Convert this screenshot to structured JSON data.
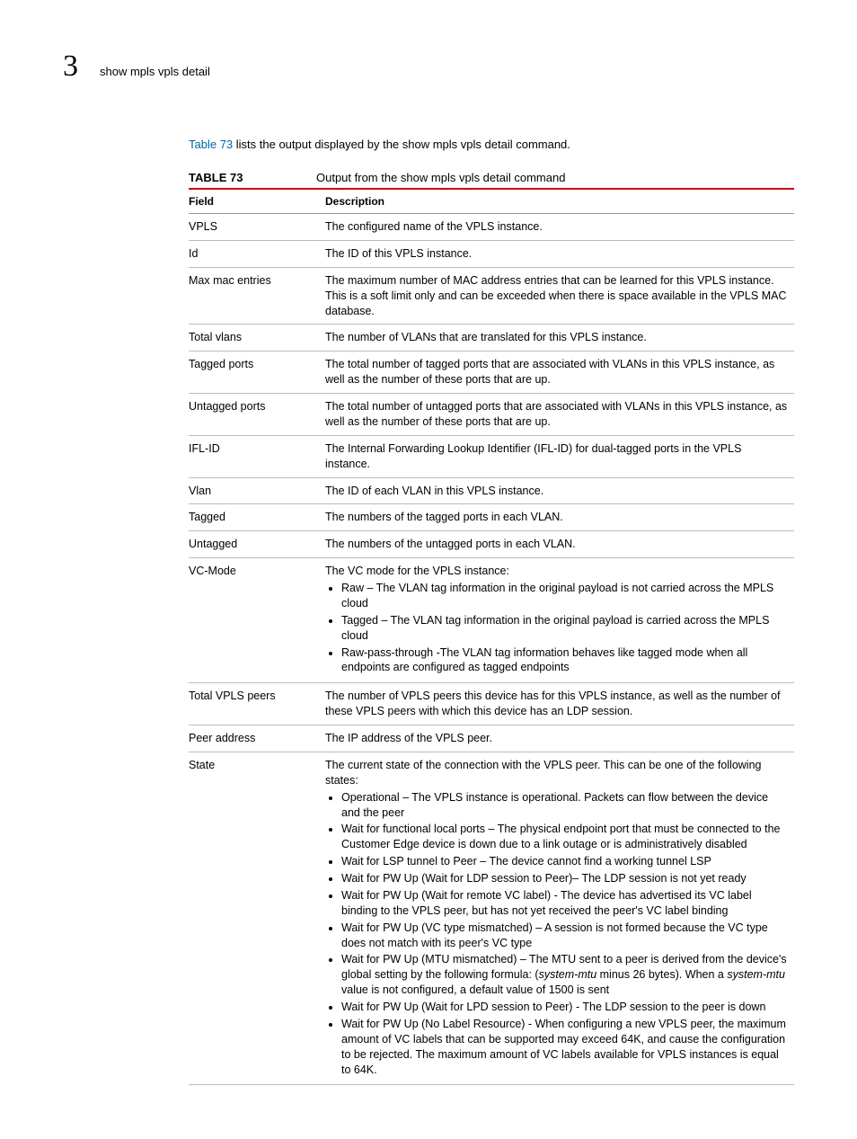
{
  "header": {
    "chapter_number": "3",
    "running_title": "show mpls vpls detail"
  },
  "intro": {
    "link_text": "Table 73",
    "rest_text": " lists the output displayed by the show mpls vpls detail command."
  },
  "table": {
    "number_label": "TABLE 73",
    "title": "Output from the show mpls vpls detail command",
    "columns": {
      "field": "Field",
      "description": "Description"
    },
    "rows": [
      {
        "field": "VPLS",
        "desc": "The configured name of the VPLS instance."
      },
      {
        "field": "Id",
        "desc": "The ID of this VPLS instance."
      },
      {
        "field": "Max mac entries",
        "desc": "The maximum number of MAC address entries that can be learned for this VPLS instance. This is a soft limit only and can be exceeded when there is space available in the VPLS MAC database."
      },
      {
        "field": "Total vlans",
        "desc": "The number of VLANs that are translated for this VPLS instance."
      },
      {
        "field": "Tagged ports",
        "desc": "The total number of tagged ports that are associated with VLANs in this VPLS instance, as well as the number of these ports that are up."
      },
      {
        "field": "Untagged ports",
        "desc": "The total number of untagged ports that are associated with VLANs in this VPLS instance, as well as the number of these ports that are up."
      },
      {
        "field": "IFL-ID",
        "desc": "The Internal Forwarding Lookup Identifier (IFL-ID) for dual-tagged ports in the VPLS instance."
      },
      {
        "field": "Vlan",
        "desc": "The ID of each VLAN in this VPLS instance."
      },
      {
        "field": "Tagged",
        "desc": "The numbers of the tagged ports in each VLAN."
      },
      {
        "field": "Untagged",
        "desc": "The numbers of the untagged ports in each VLAN."
      },
      {
        "field": "VC-Mode",
        "lead": "The VC mode for the VPLS instance:",
        "bullets": [
          "Raw – The VLAN tag information in the original payload is not carried across the MPLS cloud",
          "Tagged – The VLAN tag information in the original payload is carried across the MPLS cloud",
          "Raw-pass-through -The VLAN tag information behaves like tagged mode when all endpoints are configured as tagged endpoints"
        ]
      },
      {
        "field": "Total VPLS peers",
        "desc": "The number of VPLS peers this device has for this VPLS instance, as well as the number of these VPLS peers with which this device has an LDP session."
      },
      {
        "field": "Peer address",
        "desc": "The IP address of the VPLS peer."
      },
      {
        "field": "State",
        "lead": "The current state of the connection with the VPLS peer. This can be one of the following states:",
        "bullets": [
          "Operational – The VPLS instance is operational. Packets can flow between the device and the peer",
          "Wait for functional local ports – The physical endpoint port that must be connected to the Customer Edge device is down due to a link outage or is administratively disabled",
          "Wait for LSP tunnel to Peer – The device cannot find a working tunnel LSP",
          "Wait for PW Up (Wait for LDP session to Peer)– The LDP session is not yet ready",
          "Wait for PW Up (Wait for remote VC label) - The device has advertised its VC label binding to the VPLS peer, but has not yet received the peer's VC label binding",
          "Wait for PW Up (VC type mismatched) – A session is not formed because the VC type does not match with its peer's VC type",
          "Wait for PW Up (MTU mismatched) – The MTU sent to a peer is derived from the device's global setting by the following formula: (<i>system-mtu</i> minus 26 bytes). When a <i>system-mtu</i> value is not configured, a default value of 1500 is sent",
          "Wait for PW Up (Wait for LPD session to Peer) - The LDP session to the peer is down",
          "Wait for PW Up (No Label Resource) - When configuring a new VPLS peer, the maximum amount of VC labels that can be supported may exceed 64K, and cause the configuration to be rejected. The maximum amount of VC labels available for VPLS instances is equal to 64K."
        ]
      }
    ]
  },
  "colors": {
    "rule_red": "#cc0000",
    "link_blue": "#0066aa"
  }
}
